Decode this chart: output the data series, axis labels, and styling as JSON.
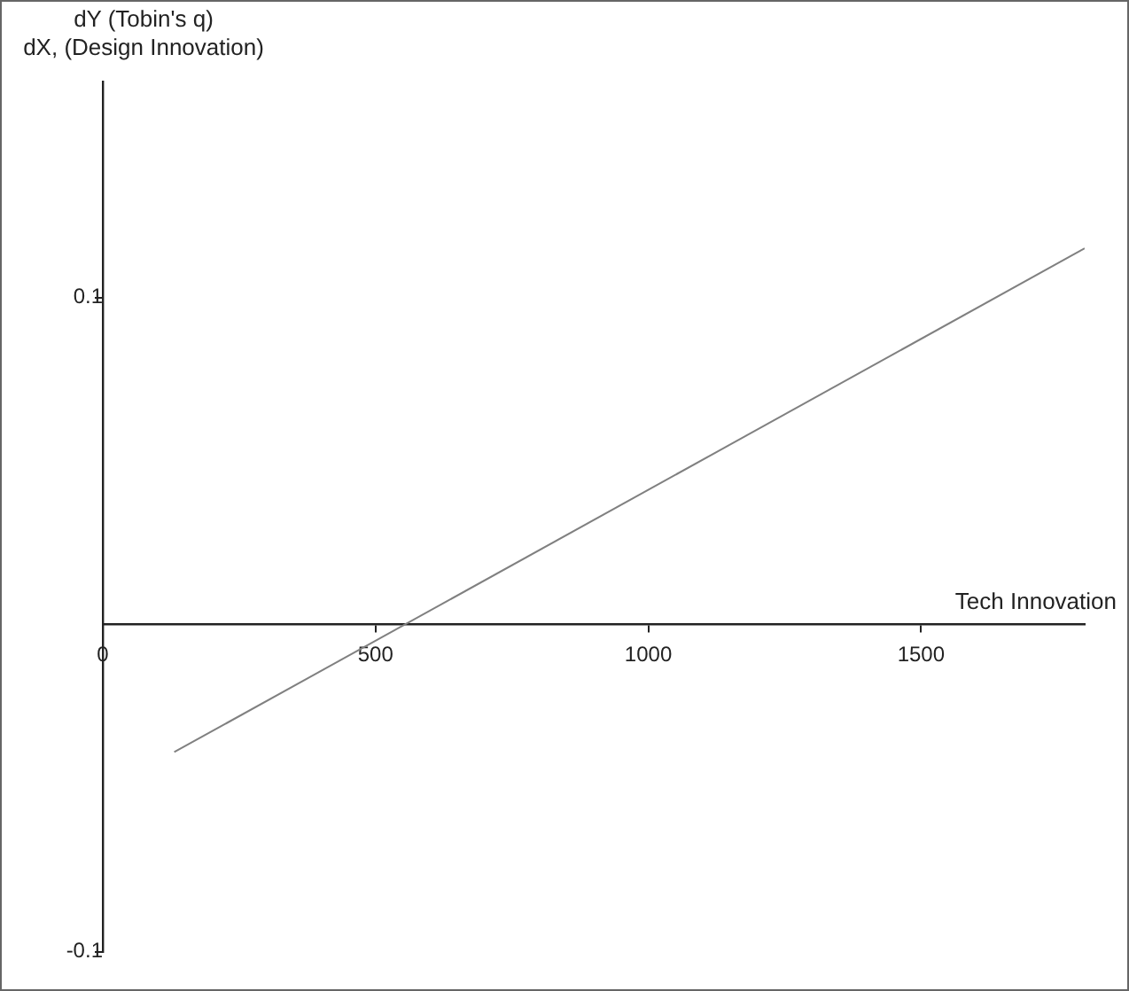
{
  "chart_data": {
    "type": "line",
    "xlabel": "Tech Innovation",
    "ylabel": "dY (Tobin's q)\ndX, (Design Innovation)",
    "x": [
      131,
      1800
    ],
    "series": [
      {
        "color": "#808080",
        "values": [
          -0.039,
          0.115
        ]
      }
    ],
    "xlim": [
      0,
      1800
    ],
    "ylim": [
      -0.1,
      0.166
    ],
    "xticks": [
      0,
      500,
      1000,
      1500
    ],
    "yticks": [
      -0.1,
      0.1
    ],
    "grid": false,
    "legend": false,
    "marker": "none",
    "line_style": "solid"
  }
}
